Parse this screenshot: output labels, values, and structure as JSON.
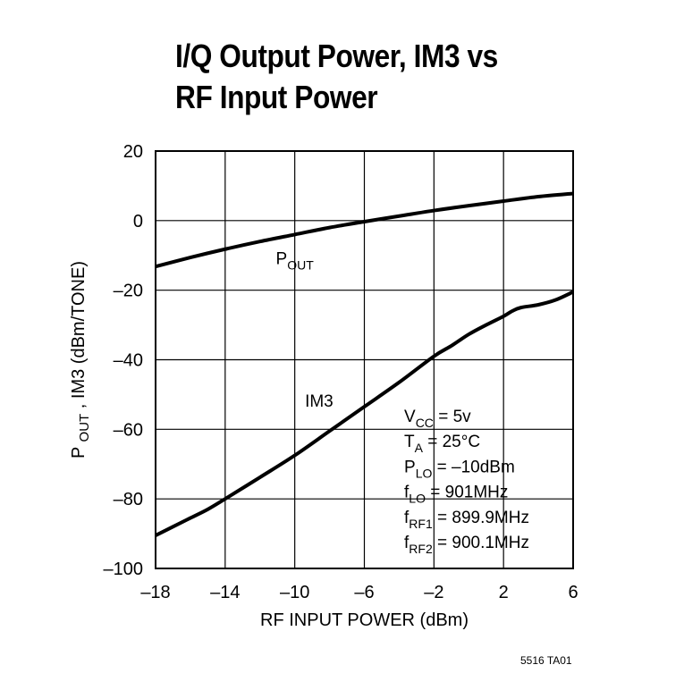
{
  "chart_data": {
    "type": "line",
    "title_lines": [
      "I/Q Output Power, IM3 vs",
      "RF Input Power"
    ],
    "xlabel": "RF INPUT POWER (dBm)",
    "ylabel": "P_OUT, IM3 (dBm/TONE)",
    "ylabel_parts": {
      "p": "P",
      "out": "OUT",
      "rest": ", IM3 (dBm/TONE)"
    },
    "xlim": [
      -18,
      6
    ],
    "ylim": [
      -100,
      20
    ],
    "xticks": [
      -18,
      -14,
      -10,
      -6,
      -2,
      2,
      6
    ],
    "xtick_labels": [
      "–18",
      "–14",
      "–10",
      "–6",
      "–2",
      "2",
      "6"
    ],
    "yticks": [
      20,
      0,
      -20,
      -40,
      -60,
      -80,
      -100
    ],
    "ytick_labels": [
      "20",
      "0",
      "–20",
      "–40",
      "–60",
      "–80",
      "–100"
    ],
    "grid": true,
    "series": [
      {
        "name": "P_OUT",
        "x": [
          -18,
          -16,
          -14,
          -12,
          -10,
          -8,
          -6,
          -4,
          -2,
          0,
          2,
          4,
          6
        ],
        "y": [
          -13.2,
          -10.6,
          -8.2,
          -6.0,
          -4.0,
          -2.0,
          -0.3,
          1.3,
          2.9,
          4.3,
          5.6,
          6.9,
          7.8
        ]
      },
      {
        "name": "IM3",
        "x": [
          -18,
          -17,
          -16,
          -15,
          -14,
          -12,
          -10,
          -8,
          -6,
          -4,
          -2,
          -1,
          0,
          1,
          2,
          2.5,
          3,
          4,
          5,
          6
        ],
        "y": [
          -90.5,
          -88,
          -85.5,
          -83,
          -80,
          -73.8,
          -67.5,
          -60.5,
          -53.5,
          -46.5,
          -39,
          -36,
          -32.7,
          -30,
          -27.5,
          -26,
          -25,
          -24.2,
          -22.8,
          -20.5
        ]
      }
    ],
    "series_labels": [
      {
        "main": "P",
        "sub": "OUT",
        "x": -10,
        "y": -12.5
      },
      {
        "main": "IM3",
        "sub": "",
        "x": -8.6,
        "y": -53.5
      }
    ],
    "annotations": [
      {
        "main": "V",
        "sub": "CC",
        "rest": " = 5v"
      },
      {
        "main": "T",
        "sub": "A",
        "rest": " = 25°C"
      },
      {
        "main": "P",
        "sub": "LO",
        "rest": " = –10dBm"
      },
      {
        "main": "f",
        "sub": "LO",
        "rest": " = 901MHz"
      },
      {
        "main": "f",
        "sub": "RF1",
        "rest": " = 899.9MHz"
      },
      {
        "main": "f",
        "sub": "RF2",
        "rest": " = 900.1MHz"
      }
    ],
    "figure_code": "5516 TA01"
  }
}
